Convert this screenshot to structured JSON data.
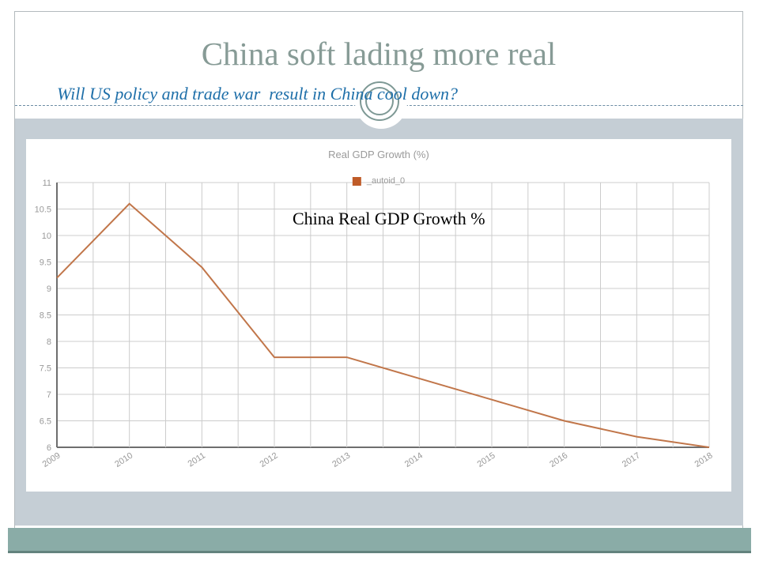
{
  "slide": {
    "title": "China soft lading more real",
    "subtitle": "Will US policy and trade war  result in China cool down?"
  },
  "chart": {
    "title": "Real GDP Growth (%)",
    "legend_label": "_autoid_0",
    "annotation": "China Real GDP Growth %"
  },
  "chart_data": {
    "type": "line",
    "title": "Real GDP Growth (%)",
    "series_name": "_autoid_0",
    "x": [
      2009,
      2010,
      2011,
      2012,
      2013,
      2014,
      2015,
      2016,
      2017,
      2018
    ],
    "values": [
      9.2,
      10.6,
      9.4,
      7.7,
      7.7,
      7.3,
      6.9,
      6.5,
      6.2,
      6.0
    ],
    "ylim": [
      6,
      11
    ],
    "ytick_step": 0.5,
    "x_minor_divisions": 2,
    "grid": true,
    "legend_position": "top-center",
    "annotation": "China Real GDP Growth %",
    "xlabel": "",
    "ylabel": ""
  },
  "colors": {
    "title": "#879b96",
    "subtitle": "#1e6fa9",
    "band_light": "#c5ced5",
    "band_teal": "#8aaca7",
    "band_teal_edge": "#63827d",
    "frame_border": "#b3babd",
    "ornament_ring": "#7e9995",
    "grid_line": "#cccccc",
    "axis_line": "#6e6e6e",
    "tick_label": "#999999",
    "data_line": "#c1764a",
    "legend_marker": "#bf5b28",
    "annotation_text": "#000000"
  }
}
